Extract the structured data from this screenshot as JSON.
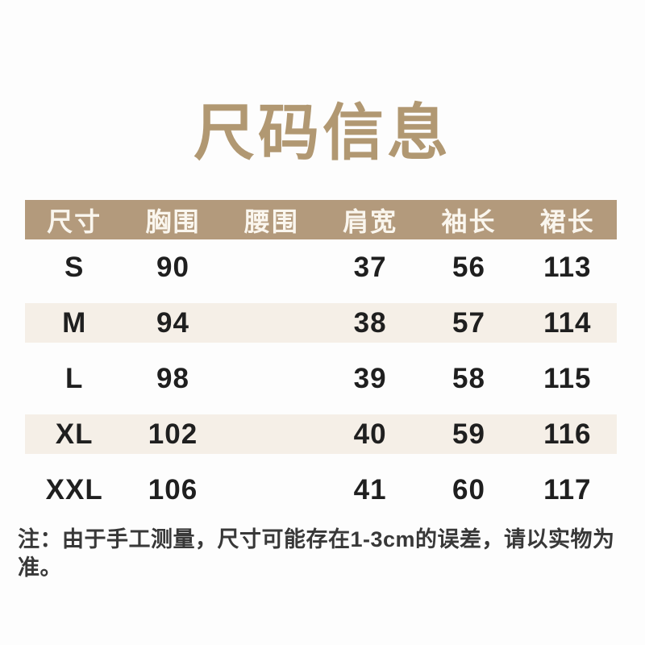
{
  "page": {
    "note": "注：由于手工测量，尺寸可能存在1-3cm的误差，请以实物为准。"
  },
  "chart_data": {
    "type": "table",
    "title": "尺码信息",
    "columns": [
      "尺寸",
      "胸围",
      "腰围",
      "肩宽",
      "袖长",
      "裙长"
    ],
    "rows": [
      [
        "S",
        "90",
        "",
        "37",
        "56",
        "113"
      ],
      [
        "M",
        "94",
        "",
        "38",
        "57",
        "114"
      ],
      [
        "L",
        "98",
        "",
        "39",
        "58",
        "115"
      ],
      [
        "XL",
        "102",
        "",
        "40",
        "59",
        "116"
      ],
      [
        "XXL",
        "106",
        "",
        "41",
        "60",
        "117"
      ]
    ],
    "striped_row_indices": [
      1,
      3
    ],
    "layout_hints": {
      "header_style": "solid tan bar, white text",
      "stripe_style": "cream band inset vertically on striped rows",
      "grid": "none"
    }
  },
  "colors": {
    "title_color": "#b19872",
    "header_bg": "#b39a7c",
    "header_text": "#faf6ee",
    "stripe_bg": "#f5efe7",
    "cell_text": "#1f1f1f",
    "note_text": "#383838",
    "page_bg": "#fdfdfd"
  }
}
